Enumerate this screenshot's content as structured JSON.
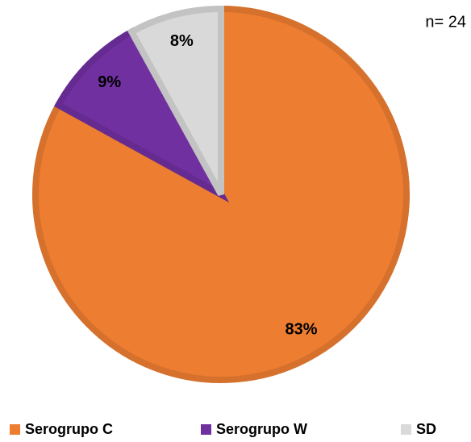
{
  "chart_data": {
    "type": "pie",
    "annotation": "n= 24",
    "categories": [
      "Serogrupo C",
      "Serogrupo W",
      "SD"
    ],
    "values": [
      83,
      9,
      8
    ],
    "value_labels": [
      "83%",
      "9%",
      "8%"
    ],
    "colors": [
      "#ED7D31",
      "#7030A0",
      "#D9D9D9"
    ],
    "legend": "bottom"
  }
}
